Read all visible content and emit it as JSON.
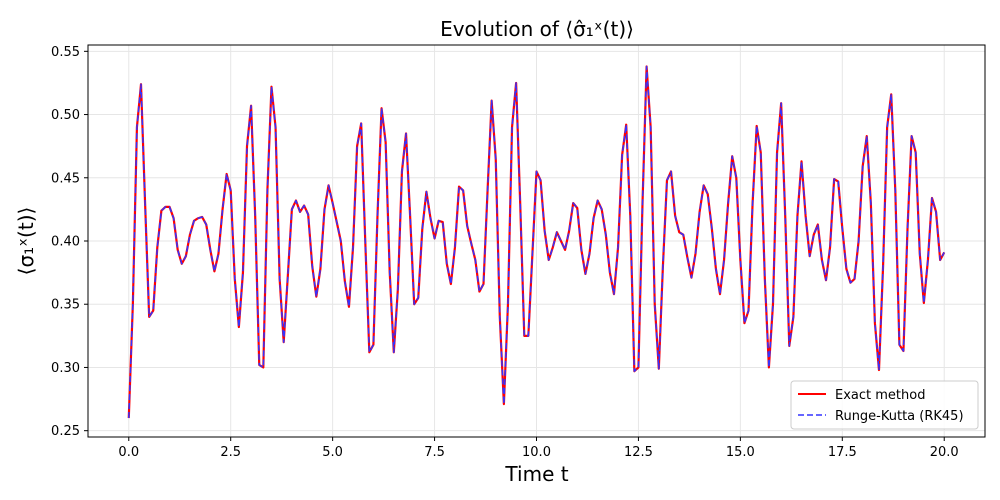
{
  "chart_data": {
    "type": "line",
    "title": "Evolution of ⟨σ̂₁ˣ(t)⟩",
    "xlabel": "Time t",
    "ylabel": "⟨σ₁ˣ(t)⟩",
    "xlim": [
      -1.0,
      21.0
    ],
    "ylim": [
      0.245,
      0.555
    ],
    "xticks": [
      0.0,
      2.5,
      5.0,
      7.5,
      10.0,
      12.5,
      15.0,
      17.5,
      20.0
    ],
    "xtick_labels": [
      "0.0",
      "2.5",
      "5.0",
      "7.5",
      "10.0",
      "12.5",
      "15.0",
      "17.5",
      "20.0"
    ],
    "yticks": [
      0.25,
      0.3,
      0.35,
      0.4,
      0.45,
      0.5,
      0.55
    ],
    "ytick_labels": [
      "0.25",
      "0.30",
      "0.35",
      "0.40",
      "0.45",
      "0.50",
      "0.55"
    ],
    "grid": true,
    "legend_position": "bottom-right",
    "x": [
      0.0,
      0.1,
      0.2,
      0.3,
      0.4,
      0.5,
      0.6,
      0.7,
      0.8,
      0.9,
      1.0,
      1.1,
      1.2,
      1.3,
      1.4,
      1.5,
      1.6,
      1.7,
      1.8,
      1.9,
      2.0,
      2.1,
      2.2,
      2.3,
      2.4,
      2.5,
      2.6,
      2.7,
      2.8,
      2.9,
      3.0,
      3.1,
      3.2,
      3.3,
      3.4,
      3.5,
      3.6,
      3.7,
      3.8,
      3.9,
      4.0,
      4.1,
      4.2,
      4.3,
      4.4,
      4.5,
      4.6,
      4.7,
      4.8,
      4.9,
      5.0,
      5.1,
      5.2,
      5.3,
      5.4,
      5.5,
      5.6,
      5.7,
      5.8,
      5.9,
      6.0,
      6.1,
      6.2,
      6.3,
      6.4,
      6.5,
      6.6,
      6.7,
      6.8,
      6.9,
      7.0,
      7.1,
      7.2,
      7.3,
      7.4,
      7.5,
      7.6,
      7.7,
      7.8,
      7.9,
      8.0,
      8.1,
      8.2,
      8.3,
      8.4,
      8.5,
      8.6,
      8.7,
      8.8,
      8.9,
      9.0,
      9.1,
      9.2,
      9.3,
      9.4,
      9.5,
      9.6,
      9.7,
      9.8,
      9.9,
      10.0,
      10.1,
      10.2,
      10.3,
      10.4,
      10.5,
      10.6,
      10.7,
      10.8,
      10.9,
      11.0,
      11.1,
      11.2,
      11.3,
      11.4,
      11.5,
      11.6,
      11.7,
      11.8,
      11.9,
      12.0,
      12.1,
      12.2,
      12.3,
      12.4,
      12.5,
      12.6,
      12.7,
      12.8,
      12.9,
      13.0,
      13.1,
      13.2,
      13.3,
      13.4,
      13.5,
      13.6,
      13.7,
      13.8,
      13.9,
      14.0,
      14.1,
      14.2,
      14.3,
      14.4,
      14.5,
      14.6,
      14.7,
      14.8,
      14.9,
      15.0,
      15.1,
      15.2,
      15.3,
      15.4,
      15.5,
      15.6,
      15.7,
      15.8,
      15.9,
      16.0,
      16.1,
      16.2,
      16.3,
      16.4,
      16.5,
      16.6,
      16.7,
      16.8,
      16.9,
      17.0,
      17.1,
      17.2,
      17.3,
      17.4,
      17.5,
      17.6,
      17.7,
      17.8,
      17.9,
      18.0,
      18.1,
      18.2,
      18.3,
      18.4,
      18.5,
      18.6,
      18.7,
      18.8,
      18.9,
      19.0,
      19.1,
      19.2,
      19.3,
      19.4,
      19.5,
      19.6,
      19.7,
      19.8,
      19.9,
      20.0
    ],
    "series": [
      {
        "name": "Exact method",
        "color": "#ff0000",
        "style": "solid",
        "values": [
          0.26,
          0.35,
          0.49,
          0.524,
          0.43,
          0.34,
          0.345,
          0.395,
          0.424,
          0.427,
          0.427,
          0.418,
          0.393,
          0.382,
          0.388,
          0.405,
          0.416,
          0.418,
          0.419,
          0.413,
          0.393,
          0.376,
          0.39,
          0.425,
          0.453,
          0.44,
          0.37,
          0.332,
          0.375,
          0.475,
          0.507,
          0.42,
          0.302,
          0.3,
          0.44,
          0.522,
          0.49,
          0.37,
          0.32,
          0.372,
          0.425,
          0.432,
          0.423,
          0.428,
          0.421,
          0.38,
          0.356,
          0.378,
          0.425,
          0.444,
          0.43,
          0.415,
          0.4,
          0.368,
          0.348,
          0.395,
          0.475,
          0.493,
          0.4,
          0.312,
          0.318,
          0.42,
          0.505,
          0.478,
          0.375,
          0.312,
          0.362,
          0.455,
          0.485,
          0.42,
          0.35,
          0.355,
          0.41,
          0.439,
          0.418,
          0.402,
          0.416,
          0.415,
          0.382,
          0.366,
          0.395,
          0.443,
          0.44,
          0.412,
          0.398,
          0.385,
          0.36,
          0.366,
          0.44,
          0.511,
          0.465,
          0.34,
          0.271,
          0.35,
          0.49,
          0.525,
          0.43,
          0.325,
          0.325,
          0.39,
          0.455,
          0.448,
          0.408,
          0.385,
          0.395,
          0.407,
          0.4,
          0.393,
          0.408,
          0.43,
          0.426,
          0.393,
          0.374,
          0.39,
          0.418,
          0.432,
          0.425,
          0.405,
          0.375,
          0.358,
          0.395,
          0.468,
          0.492,
          0.42,
          0.297,
          0.3,
          0.43,
          0.538,
          0.49,
          0.35,
          0.299,
          0.38,
          0.448,
          0.455,
          0.42,
          0.407,
          0.405,
          0.387,
          0.371,
          0.39,
          0.423,
          0.444,
          0.437,
          0.41,
          0.378,
          0.358,
          0.385,
          0.43,
          0.467,
          0.45,
          0.385,
          0.335,
          0.345,
          0.43,
          0.491,
          0.47,
          0.37,
          0.3,
          0.35,
          0.47,
          0.509,
          0.42,
          0.317,
          0.34,
          0.42,
          0.463,
          0.42,
          0.388,
          0.405,
          0.413,
          0.385,
          0.369,
          0.395,
          0.449,
          0.447,
          0.41,
          0.378,
          0.367,
          0.37,
          0.4,
          0.459,
          0.483,
          0.43,
          0.335,
          0.298,
          0.38,
          0.49,
          0.516,
          0.44,
          0.318,
          0.313,
          0.41,
          0.483,
          0.47,
          0.39,
          0.351,
          0.385,
          0.434,
          0.423,
          0.385,
          0.391
        ]
      },
      {
        "name": "Runge-Kutta (RK45)",
        "color": "#3333ff",
        "style": "dashed",
        "values": [
          0.26,
          0.35,
          0.49,
          0.524,
          0.43,
          0.34,
          0.345,
          0.395,
          0.424,
          0.427,
          0.427,
          0.418,
          0.393,
          0.382,
          0.388,
          0.405,
          0.416,
          0.418,
          0.419,
          0.413,
          0.393,
          0.376,
          0.39,
          0.425,
          0.453,
          0.44,
          0.37,
          0.332,
          0.375,
          0.475,
          0.507,
          0.42,
          0.302,
          0.3,
          0.44,
          0.522,
          0.49,
          0.37,
          0.32,
          0.372,
          0.425,
          0.432,
          0.423,
          0.428,
          0.421,
          0.38,
          0.356,
          0.378,
          0.425,
          0.444,
          0.43,
          0.415,
          0.4,
          0.368,
          0.348,
          0.395,
          0.475,
          0.493,
          0.4,
          0.312,
          0.318,
          0.42,
          0.505,
          0.478,
          0.375,
          0.312,
          0.362,
          0.455,
          0.485,
          0.42,
          0.35,
          0.355,
          0.41,
          0.439,
          0.418,
          0.402,
          0.416,
          0.415,
          0.382,
          0.366,
          0.395,
          0.443,
          0.44,
          0.412,
          0.398,
          0.385,
          0.36,
          0.366,
          0.44,
          0.511,
          0.465,
          0.34,
          0.271,
          0.35,
          0.49,
          0.525,
          0.43,
          0.325,
          0.325,
          0.39,
          0.455,
          0.448,
          0.408,
          0.385,
          0.395,
          0.407,
          0.4,
          0.393,
          0.408,
          0.43,
          0.426,
          0.393,
          0.374,
          0.39,
          0.418,
          0.432,
          0.425,
          0.405,
          0.375,
          0.358,
          0.395,
          0.468,
          0.492,
          0.42,
          0.297,
          0.3,
          0.43,
          0.538,
          0.49,
          0.35,
          0.299,
          0.38,
          0.448,
          0.455,
          0.42,
          0.407,
          0.405,
          0.387,
          0.371,
          0.39,
          0.423,
          0.444,
          0.437,
          0.41,
          0.378,
          0.358,
          0.385,
          0.43,
          0.467,
          0.45,
          0.385,
          0.335,
          0.345,
          0.43,
          0.491,
          0.47,
          0.37,
          0.3,
          0.35,
          0.47,
          0.509,
          0.42,
          0.317,
          0.34,
          0.42,
          0.463,
          0.42,
          0.388,
          0.405,
          0.413,
          0.385,
          0.369,
          0.395,
          0.449,
          0.447,
          0.41,
          0.378,
          0.367,
          0.37,
          0.4,
          0.459,
          0.483,
          0.43,
          0.335,
          0.298,
          0.38,
          0.49,
          0.516,
          0.44,
          0.318,
          0.313,
          0.41,
          0.483,
          0.47,
          0.39,
          0.351,
          0.385,
          0.434,
          0.423,
          0.385,
          0.391
        ]
      }
    ]
  }
}
